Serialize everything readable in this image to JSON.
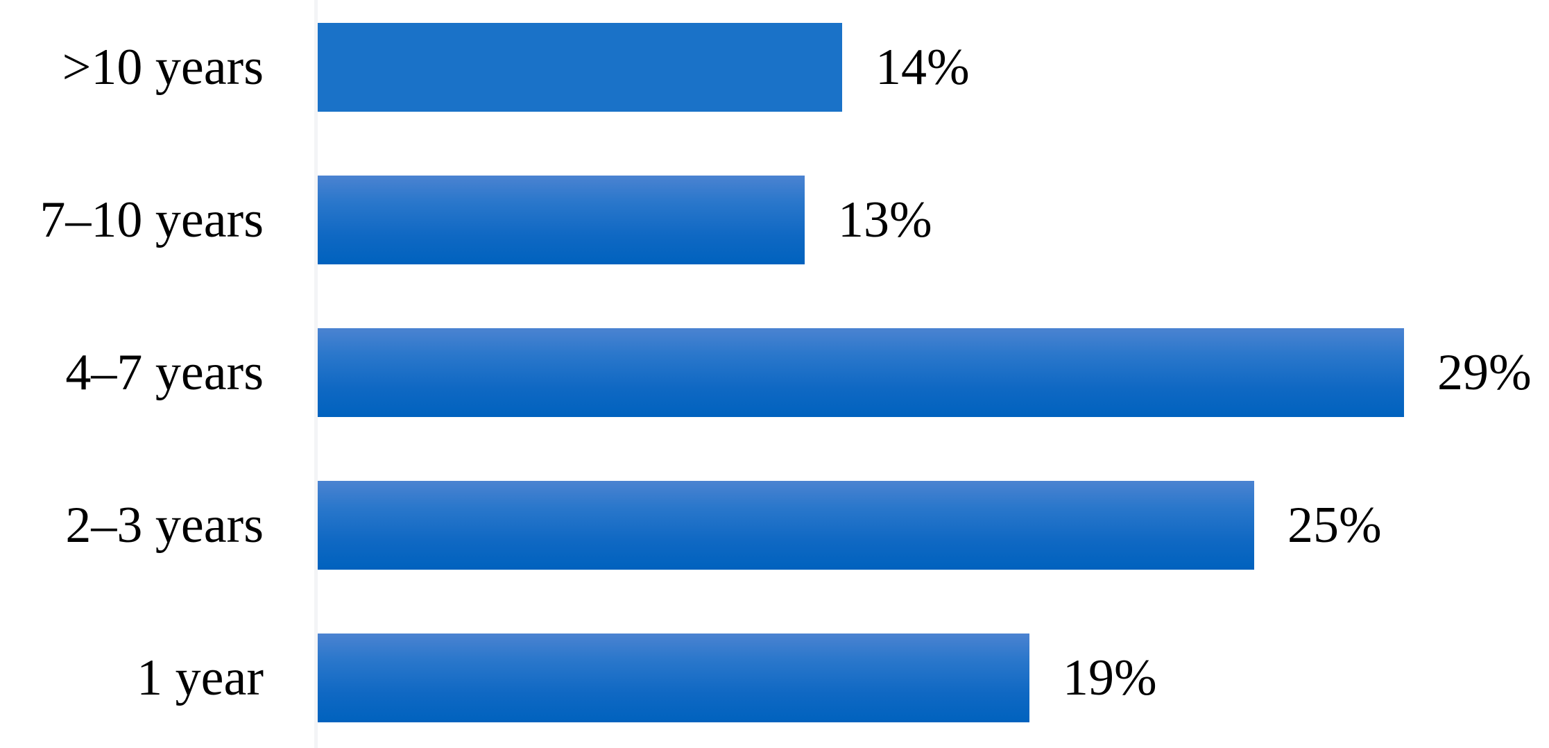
{
  "chart_data": {
    "type": "bar",
    "orientation": "horizontal",
    "title": "",
    "xlabel": "",
    "ylabel": "",
    "categories": [
      ">10 years",
      "7–10 years",
      "4–7 years",
      "2–3 years",
      "1 year"
    ],
    "values": [
      14,
      13,
      29,
      25,
      19
    ],
    "data_labels": [
      "14%",
      "13%",
      "29%",
      "25%",
      "19%"
    ],
    "xlim": [
      0,
      33
    ],
    "grid": false,
    "legend_position": "none",
    "colors": {
      "bar_flat": "#1a72c8",
      "bar_gradient_top": "#4b83d1",
      "bar_gradient_mid": "#1e71c8",
      "bar_gradient_bottom": "#0062be",
      "axis_line": "#f3f4f6",
      "text": "#000000",
      "background": "#ffffff"
    }
  }
}
